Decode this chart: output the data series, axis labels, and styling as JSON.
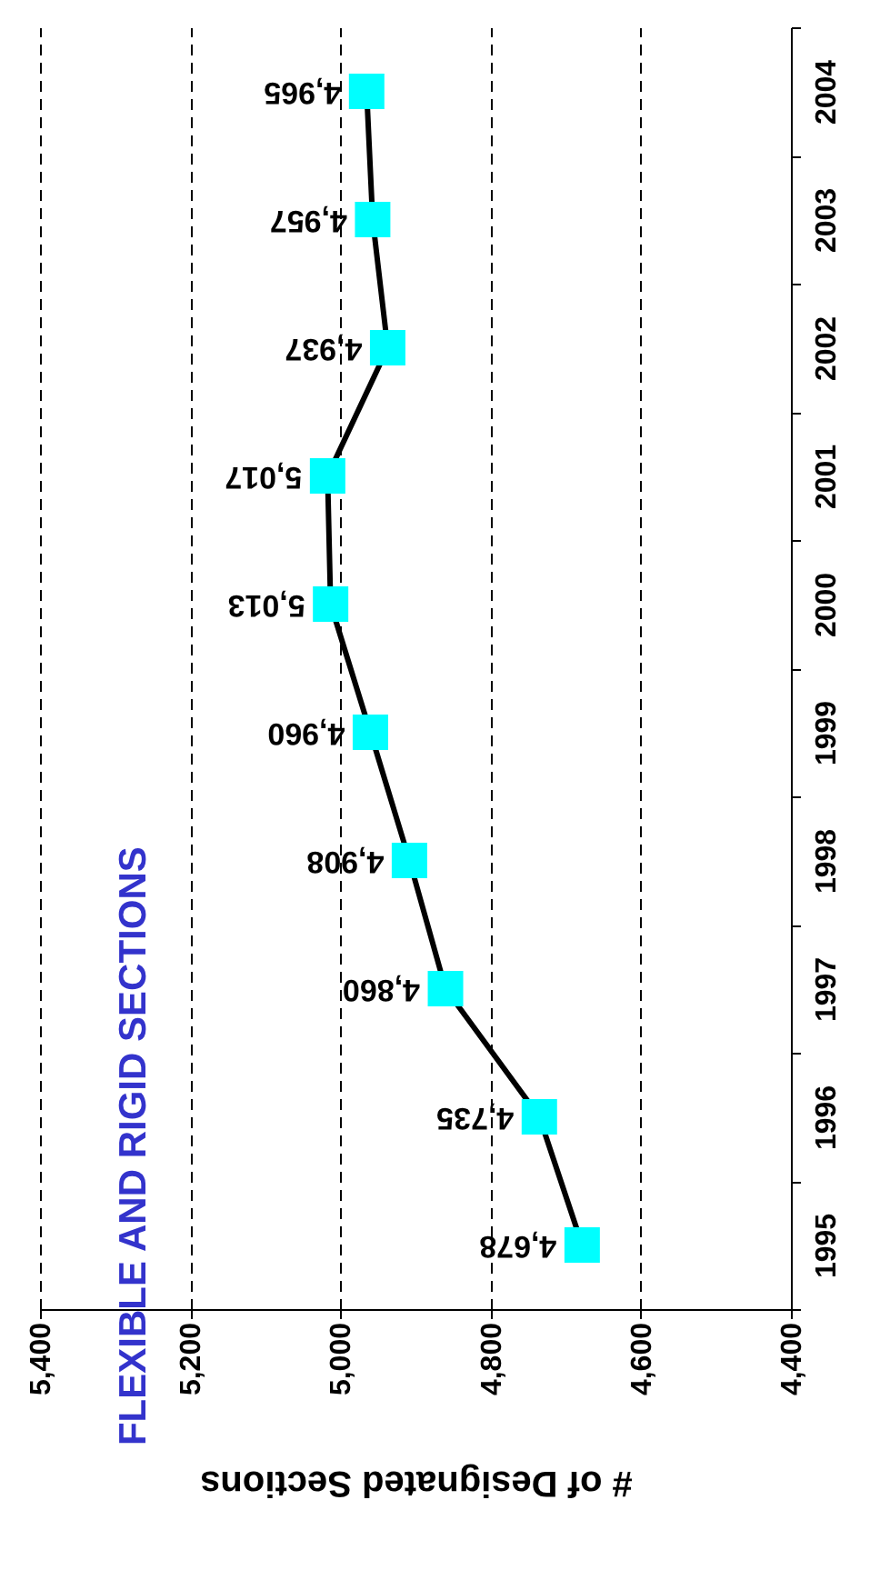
{
  "chart_data": {
    "type": "line",
    "orientation": "horizontal",
    "title": "FLEXIBLE AND RIGID SECTIONS",
    "xlabel": "# of Designated Sections",
    "categories": [
      "2004",
      "2003",
      "2002",
      "2001",
      "2000",
      "1999",
      "1998",
      "1997",
      "1996",
      "1995"
    ],
    "series": [
      {
        "color": "#000000",
        "values": [
          4965,
          4957,
          4937,
          5017,
          5013,
          4960,
          4908,
          4860,
          4735,
          4678
        ],
        "value_labels": [
          "4,965",
          "4,957",
          "4,937",
          "5,017",
          "5,013",
          "4,960",
          "4,908",
          "4,860",
          "4,735",
          "4,678"
        ]
      }
    ],
    "xlim": [
      5400,
      4400
    ],
    "xticks": [
      {
        "value": 5400,
        "label": "5,400"
      },
      {
        "value": 5200,
        "label": "5,200"
      },
      {
        "value": 5000,
        "label": "5,000"
      },
      {
        "value": 4800,
        "label": "4,800"
      },
      {
        "value": 4600,
        "label": "4,600"
      },
      {
        "value": 4400,
        "label": "4,400"
      }
    ],
    "grid": "x",
    "marker": "square",
    "line_style": "solid"
  }
}
